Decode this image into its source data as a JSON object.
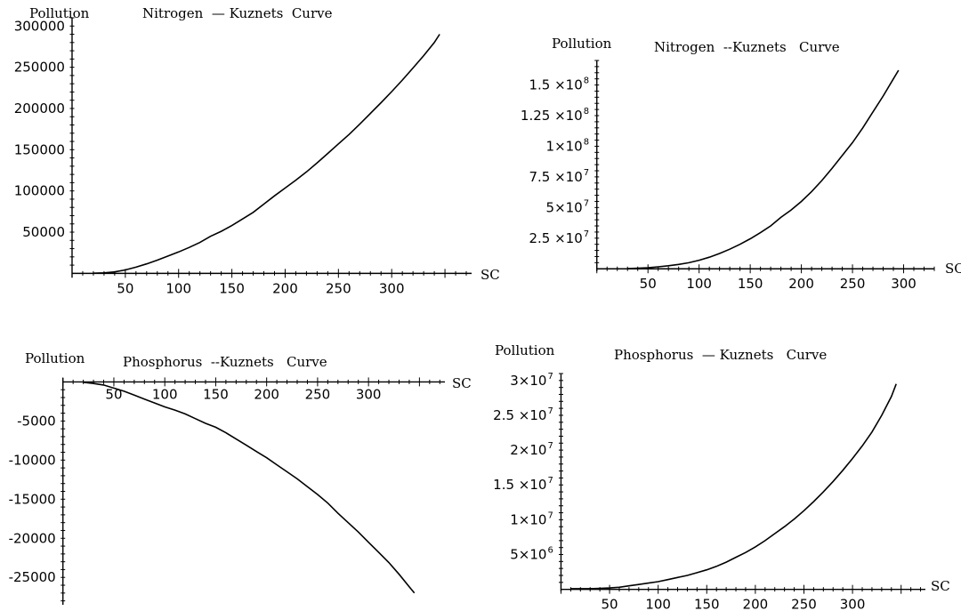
{
  "chart_data": [
    {
      "type": "line",
      "title": "Nitrogen  — Kuznets  Curve",
      "ylabel": "Pollution",
      "xlabel": "SC",
      "x_ticks": [
        50,
        100,
        150,
        200,
        250,
        300
      ],
      "y_ticks": [
        50000,
        100000,
        150000,
        200000,
        250000,
        300000
      ],
      "y_tick_labels": [
        "50000",
        "100000",
        "150000",
        "200000",
        "250000",
        "300000"
      ],
      "xlim": [
        -5,
        375
      ],
      "ylim": [
        -5000,
        310000
      ],
      "series": [
        {
          "x": [
            20,
            30,
            40,
            50,
            60,
            70,
            80,
            90,
            100,
            110,
            120,
            130,
            140,
            150,
            160,
            170,
            180,
            190,
            200,
            210,
            220,
            230,
            240,
            250,
            260,
            270,
            280,
            290,
            300,
            310,
            320,
            330,
            340,
            345
          ],
          "y": [
            200,
            600,
            1800,
            4200,
            7500,
            11500,
            16000,
            21000,
            26000,
            31500,
            37500,
            45000,
            51000,
            58000,
            66000,
            74000,
            84000,
            94000,
            103500,
            113000,
            123000,
            134000,
            145500,
            157000,
            168500,
            181000,
            194000,
            207000,
            220500,
            234500,
            249000,
            264000,
            280000,
            290000
          ]
        }
      ]
    },
    {
      "type": "line",
      "title": "Nitrogen  --Kuznets   Curve",
      "ylabel": "Pollution",
      "xlabel": "SC",
      "x_ticks": [
        50,
        100,
        150,
        200,
        250,
        300
      ],
      "y_ticks": [
        25000000,
        50000000,
        75000000,
        100000000,
        125000000,
        150000000
      ],
      "y_tick_labels": [
        "2.5 ×10",
        "5×10",
        "7.5 ×10",
        "1×10",
        "1.25 ×10",
        "1.5 ×10"
      ],
      "y_tick_exponents": [
        "7",
        "7",
        "7",
        "8",
        "8",
        "8"
      ],
      "xlim": [
        -5,
        330
      ],
      "ylim": [
        -2000000,
        170000000
      ],
      "series": [
        {
          "x": [
            30,
            40,
            50,
            60,
            70,
            80,
            90,
            100,
            110,
            120,
            130,
            140,
            150,
            160,
            170,
            180,
            190,
            200,
            210,
            220,
            230,
            240,
            250,
            260,
            270,
            280,
            290,
            295
          ],
          "y": [
            200000,
            500000,
            900000,
            1600000,
            2500000,
            3600000,
            5000000,
            7000000,
            9500000,
            12500000,
            16000000,
            20000000,
            24500000,
            29500000,
            35000000,
            42000000,
            48000000,
            55000000,
            63000000,
            72000000,
            82000000,
            92500000,
            103000000,
            115000000,
            128000000,
            141000000,
            155000000,
            162000000
          ]
        }
      ]
    },
    {
      "type": "line",
      "title": "Phosphorus  --Kuznets   Curve",
      "ylabel": "Pollution",
      "xlabel": "SC",
      "x_ticks": [
        50,
        100,
        150,
        200,
        250,
        300
      ],
      "y_ticks": [
        -5000,
        -10000,
        -15000,
        -20000,
        -25000
      ],
      "y_tick_labels": [
        "-5000",
        "-10000",
        "-15000",
        "-20000",
        "-25000"
      ],
      "xlim": [
        -5,
        375
      ],
      "ylim": [
        -28500,
        500
      ],
      "series": [
        {
          "x": [
            20,
            30,
            40,
            50,
            60,
            70,
            80,
            90,
            100,
            110,
            120,
            130,
            140,
            150,
            160,
            170,
            180,
            190,
            200,
            210,
            220,
            230,
            240,
            250,
            260,
            270,
            280,
            290,
            300,
            310,
            320,
            330,
            340,
            345
          ],
          "y": [
            -50,
            -200,
            -400,
            -800,
            -1200,
            -1700,
            -2200,
            -2700,
            -3200,
            -3600,
            -4100,
            -4700,
            -5300,
            -5800,
            -6500,
            -7300,
            -8100,
            -8900,
            -9700,
            -10600,
            -11500,
            -12400,
            -13400,
            -14400,
            -15500,
            -16800,
            -18000,
            -19200,
            -20500,
            -21800,
            -23100,
            -24600,
            -26200,
            -27000
          ]
        }
      ]
    },
    {
      "type": "line",
      "title": "Phosphorus  — Kuznets   Curve",
      "ylabel": "Pollution",
      "xlabel": "SC",
      "x_ticks": [
        50,
        100,
        150,
        200,
        250,
        300
      ],
      "y_ticks": [
        5000000,
        10000000,
        15000000,
        20000000,
        25000000,
        30000000
      ],
      "y_tick_labels": [
        "5×10",
        "1×10",
        "1.5 ×10",
        "2×10",
        "2.5 ×10",
        "3×10"
      ],
      "y_tick_exponents": [
        "6",
        "7",
        "7",
        "7",
        "7",
        "7"
      ],
      "xlim": [
        -5,
        375
      ],
      "ylim": [
        -300000,
        31000000
      ],
      "series": [
        {
          "x": [
            10,
            20,
            30,
            40,
            50,
            60,
            70,
            80,
            90,
            100,
            110,
            120,
            130,
            140,
            150,
            160,
            170,
            180,
            190,
            200,
            210,
            220,
            230,
            240,
            250,
            260,
            270,
            280,
            290,
            300,
            310,
            320,
            330,
            340,
            345
          ],
          "y": [
            100000,
            100000,
            100000,
            150000,
            200000,
            300000,
            500000,
            700000,
            900000,
            1100000,
            1400000,
            1700000,
            2000000,
            2400000,
            2800000,
            3300000,
            3900000,
            4600000,
            5300000,
            6100000,
            7000000,
            8000000,
            9000000,
            10100000,
            11300000,
            12600000,
            14000000,
            15500000,
            17100000,
            18800000,
            20600000,
            22600000,
            25000000,
            27700000,
            29500000
          ]
        }
      ]
    }
  ]
}
